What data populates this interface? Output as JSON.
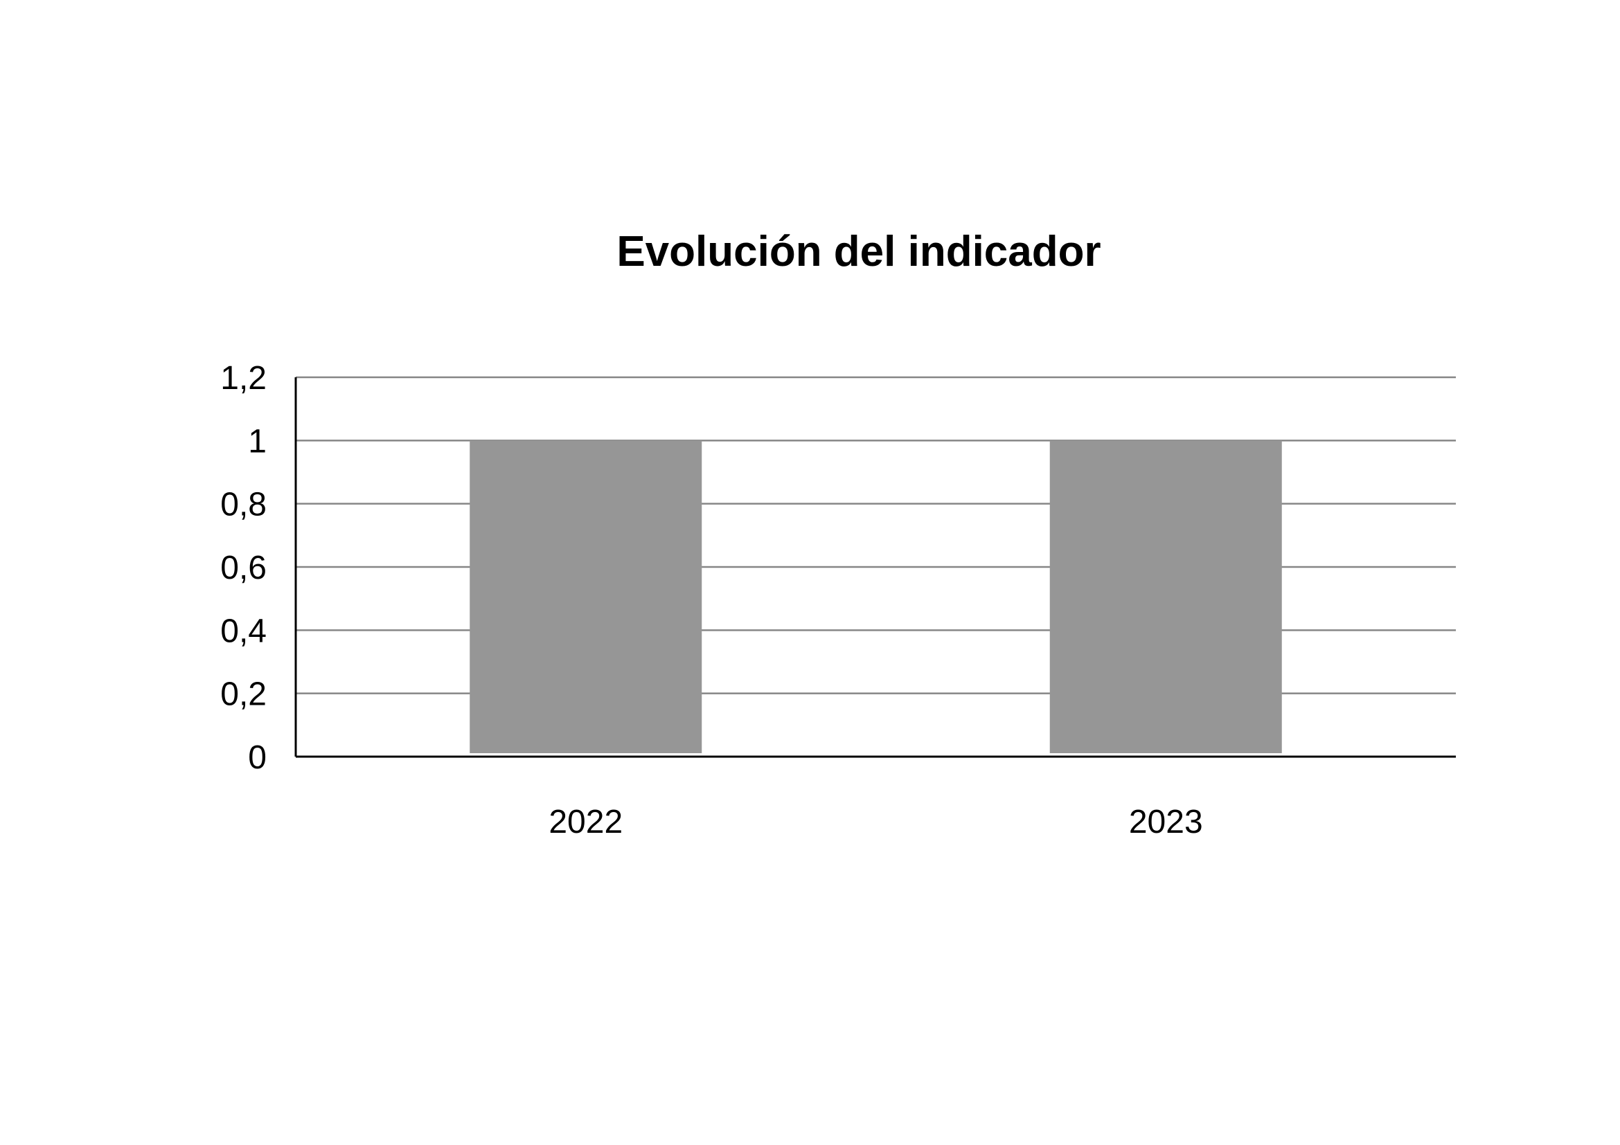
{
  "chart_data": {
    "type": "bar",
    "title": "Evolución del indicador",
    "categories": [
      "2022",
      "2023"
    ],
    "values": [
      1,
      1
    ],
    "ylim": [
      0,
      1.2
    ],
    "y_ticks": [
      "0",
      "0,2",
      "0,4",
      "0,6",
      "0,8",
      "1",
      "1,2"
    ],
    "grid": true,
    "legend": "none",
    "xlabel": "",
    "ylabel": "",
    "colors": {
      "bar": "#969696",
      "grid": "#868686",
      "axis": "#000000",
      "text": "#000000"
    }
  }
}
